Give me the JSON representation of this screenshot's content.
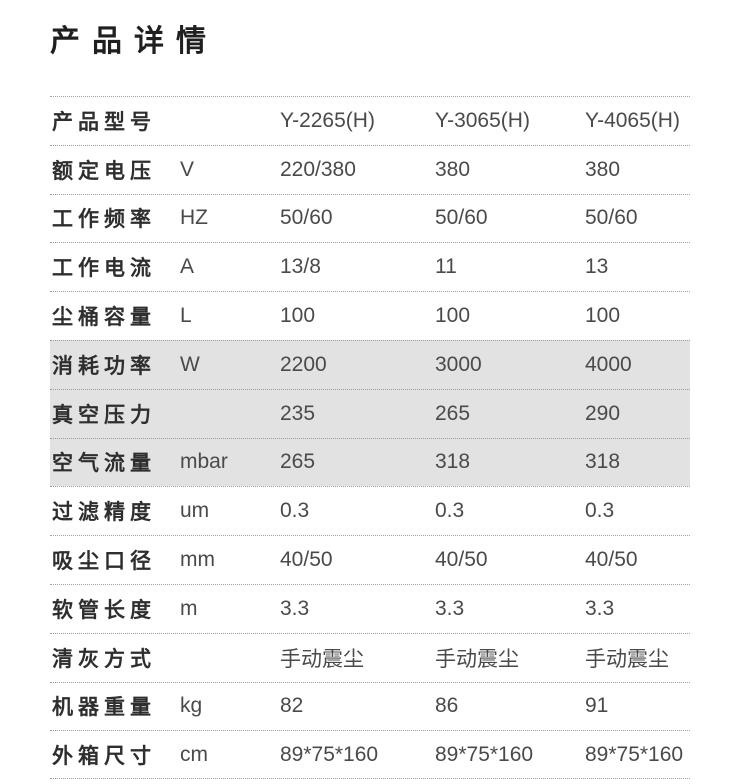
{
  "page": {
    "title": "产品详情"
  },
  "colors": {
    "highlight_row_bg": "#e2e2e2",
    "separator_line": "#9d9d9d",
    "title_text": "#1f1f1f",
    "label_text": "#2e2e2e",
    "value_text": "#4a4a4a"
  },
  "table": {
    "rows": [
      {
        "label": "产品型号",
        "unit": "",
        "v1": "Y-2265(H)",
        "v2": "Y-3065(H)",
        "v3": "Y-4065(H)",
        "highlighted": false
      },
      {
        "label": "额定电压",
        "unit": "V",
        "v1": "220/380",
        "v2": "380",
        "v3": "380",
        "highlighted": false
      },
      {
        "label": "工作频率",
        "unit": "HZ",
        "v1": "50/60",
        "v2": "50/60",
        "v3": "50/60",
        "highlighted": false
      },
      {
        "label": "工作电流",
        "unit": "A",
        "v1": "13/8",
        "v2": "11",
        "v3": "13",
        "highlighted": false
      },
      {
        "label": "尘桶容量",
        "unit": "L",
        "v1": "100",
        "v2": "100",
        "v3": "100",
        "highlighted": false
      },
      {
        "label": "消耗功率",
        "unit": "W",
        "v1": "2200",
        "v2": "3000",
        "v3": "4000",
        "highlighted": true
      },
      {
        "label": "真空压力",
        "unit": "",
        "v1": "235",
        "v2": "265",
        "v3": "290",
        "highlighted": true
      },
      {
        "label": "空气流量",
        "unit": "mbar",
        "v1": "265",
        "v2": "318",
        "v3": "318",
        "highlighted": true
      },
      {
        "label": "过滤精度",
        "unit": "um",
        "v1": "0.3",
        "v2": "0.3",
        "v3": "0.3",
        "highlighted": false
      },
      {
        "label": "吸尘口径",
        "unit": "mm",
        "v1": "40/50",
        "v2": "40/50",
        "v3": "40/50",
        "highlighted": false
      },
      {
        "label": "软管长度",
        "unit": "m",
        "v1": "3.3",
        "v2": "3.3",
        "v3": "3.3",
        "highlighted": false
      },
      {
        "label": "清灰方式",
        "unit": "",
        "v1": "手动震尘",
        "v2": "手动震尘",
        "v3": "手动震尘",
        "highlighted": false
      },
      {
        "label": "机器重量",
        "unit": "kg",
        "v1": "82",
        "v2": "86",
        "v3": "91",
        "highlighted": false
      },
      {
        "label": "外箱尺寸",
        "unit": "cm",
        "v1": "89*75*160",
        "v2": "89*75*160",
        "v3": "89*75*160",
        "highlighted": false
      }
    ]
  }
}
